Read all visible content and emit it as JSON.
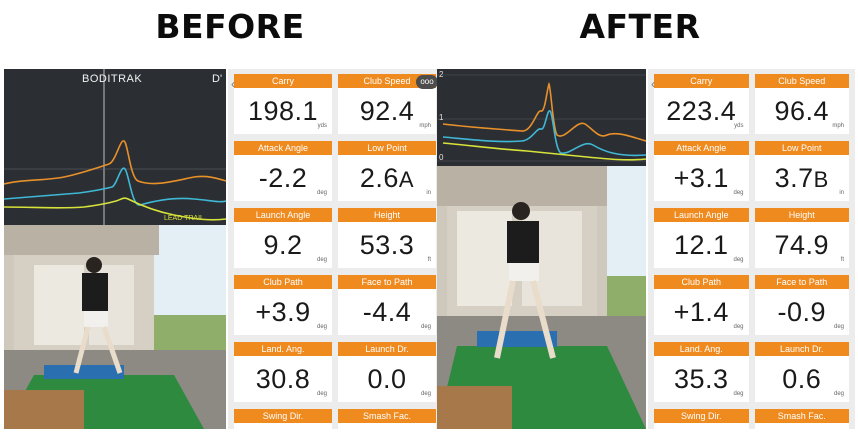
{
  "before": {
    "heading": "BEFORE",
    "graph_title": "BODITRAK",
    "graph_tag": "D'",
    "legend": "LEAD  TRAIL",
    "metrics": [
      {
        "label": "Carry",
        "value": "198.1",
        "unit": "yds"
      },
      {
        "label": "Club Speed",
        "value": "92.4",
        "unit": "mph"
      },
      {
        "label": "Attack Angle",
        "value": "-2.2",
        "unit": "deg"
      },
      {
        "label": "Low Point",
        "value": "2.6",
        "letter": "A",
        "unit": "in"
      },
      {
        "label": "Launch Angle",
        "value": "9.2",
        "unit": "deg"
      },
      {
        "label": "Height",
        "value": "53.3",
        "unit": "ft"
      },
      {
        "label": "Club Path",
        "value": "+3.9",
        "unit": "deg"
      },
      {
        "label": "Face to Path",
        "value": "-4.4",
        "unit": "deg"
      },
      {
        "label": "Land. Ang.",
        "value": "30.8",
        "unit": "deg"
      },
      {
        "label": "Launch Dr.",
        "value": "0.0",
        "unit": "deg"
      },
      {
        "label": "Swing Dir."
      },
      {
        "label": "Smash Fac."
      }
    ]
  },
  "after": {
    "heading": "AFTER",
    "axis": [
      "2",
      "1",
      "0"
    ],
    "metrics": [
      {
        "label": "Carry",
        "value": "223.4",
        "unit": "yds"
      },
      {
        "label": "Club Speed",
        "value": "96.4",
        "unit": "mph"
      },
      {
        "label": "Attack Angle",
        "value": "+3.1",
        "unit": "deg"
      },
      {
        "label": "Low Point",
        "value": "3.7",
        "letter": "B",
        "unit": "in"
      },
      {
        "label": "Launch Angle",
        "value": "12.1",
        "unit": "deg"
      },
      {
        "label": "Height",
        "value": "74.9",
        "unit": "ft"
      },
      {
        "label": "Club Path",
        "value": "+1.4",
        "unit": "deg"
      },
      {
        "label": "Face to Path",
        "value": "-0.9",
        "unit": "deg"
      },
      {
        "label": "Land. Ang.",
        "value": "35.3",
        "unit": "deg"
      },
      {
        "label": "Launch Dr.",
        "value": "0.6",
        "unit": "deg"
      },
      {
        "label": "Swing Dir."
      },
      {
        "label": "Smash Fac."
      }
    ]
  },
  "more_label": "ooo",
  "colors": {
    "orange_tile": "#ef8a1f",
    "graph_bg": "#2b2f33",
    "line_orange": "#e8902a",
    "line_blue": "#3fb8d6",
    "line_yellow": "#d7e23a"
  }
}
